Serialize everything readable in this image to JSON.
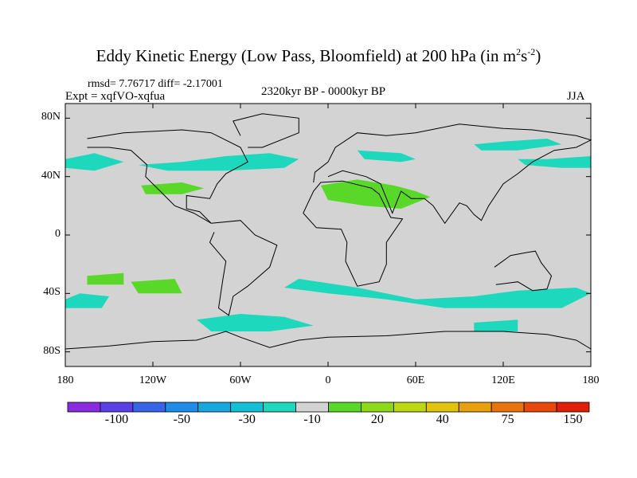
{
  "title": {
    "main": "Eddy Kinetic Energy (Low Pass, Bloomfield) at 200 hPa (in m",
    "sup1": "2",
    "s": "s",
    "sup2": "-2",
    "close": ")"
  },
  "stats": "rmsd= 7.76717 diff= -2.17001",
  "experiment": "Expt = xqfVO-xqfua",
  "period": "2320kyr BP - 0000kyr BP",
  "season": "JJA",
  "map": {
    "projection": "cylindrical-equidistant",
    "lon_range": [
      -180,
      180
    ],
    "lat_range": [
      -90,
      90
    ],
    "ocean_land_fill": "#d3d3d3",
    "x_ticks": [
      {
        "lon": -180,
        "label": "180"
      },
      {
        "lon": -120,
        "label": "120W"
      },
      {
        "lon": -60,
        "label": "60W"
      },
      {
        "lon": 0,
        "label": "0"
      },
      {
        "lon": 60,
        "label": "60E"
      },
      {
        "lon": 120,
        "label": "120E"
      },
      {
        "lon": 180,
        "label": "180"
      }
    ],
    "y_ticks": [
      {
        "lat": 80,
        "label": "80N"
      },
      {
        "lat": 40,
        "label": "40N"
      },
      {
        "lat": 0,
        "label": "0"
      },
      {
        "lat": -40,
        "label": "40S"
      },
      {
        "lat": -80,
        "label": "80S"
      }
    ]
  },
  "colorbar": {
    "colors": [
      "#8a2be2",
      "#5a3ee6",
      "#3a64e8",
      "#1e8ce8",
      "#18a8e0",
      "#15c0d6",
      "#1dd8bc",
      "#d3d3d3",
      "#5ad82a",
      "#8ed81a",
      "#bcd812",
      "#e0c40e",
      "#e8a00c",
      "#e8740c",
      "#e8480a",
      "#e01e0a"
    ],
    "labels": [
      "-100",
      "-50",
      "-30",
      "-10",
      "20",
      "40",
      "75",
      "150"
    ]
  },
  "features": {
    "regions": [
      {
        "name": "north-pacific-band-west",
        "level": -10,
        "color": "#1dd8bc",
        "pts": [
          [
            -180,
            52
          ],
          [
            -160,
            56
          ],
          [
            -140,
            50
          ],
          [
            -160,
            44
          ],
          [
            -180,
            46
          ]
        ]
      },
      {
        "name": "north-atlantic-band",
        "level": -10,
        "color": "#1dd8bc",
        "pts": [
          [
            -130,
            48
          ],
          [
            -100,
            50
          ],
          [
            -70,
            54
          ],
          [
            -40,
            56
          ],
          [
            -20,
            52
          ],
          [
            -30,
            46
          ],
          [
            -70,
            44
          ],
          [
            -110,
            44
          ]
        ]
      },
      {
        "name": "siberia-band",
        "level": -10,
        "color": "#1dd8bc",
        "pts": [
          [
            20,
            58
          ],
          [
            50,
            56
          ],
          [
            60,
            52
          ],
          [
            50,
            50
          ],
          [
            25,
            52
          ]
        ]
      },
      {
        "name": "west-asia-band",
        "level": -10,
        "color": "#1dd8bc",
        "pts": [
          [
            130,
            52
          ],
          [
            150,
            52
          ],
          [
            180,
            54
          ],
          [
            180,
            46
          ],
          [
            160,
            46
          ],
          [
            135,
            48
          ]
        ]
      },
      {
        "name": "east-siberia-band",
        "level": -10,
        "color": "#1dd8bc",
        "pts": [
          [
            100,
            62
          ],
          [
            120,
            64
          ],
          [
            150,
            66
          ],
          [
            160,
            62
          ],
          [
            130,
            58
          ],
          [
            105,
            58
          ]
        ]
      },
      {
        "name": "subtropic-us",
        "level": 20,
        "color": "#5ad82a",
        "pts": [
          [
            -128,
            34
          ],
          [
            -100,
            36
          ],
          [
            -85,
            32
          ],
          [
            -100,
            28
          ],
          [
            -125,
            28
          ]
        ]
      },
      {
        "name": "north-africa-middle-east",
        "level": 20,
        "color": "#5ad82a",
        "pts": [
          [
            -5,
            34
          ],
          [
            20,
            38
          ],
          [
            45,
            34
          ],
          [
            60,
            30
          ],
          [
            70,
            26
          ],
          [
            50,
            18
          ],
          [
            25,
            20
          ],
          [
            0,
            24
          ]
        ]
      },
      {
        "name": "southern-ocean-band",
        "level": -10,
        "color": "#1dd8bc",
        "pts": [
          [
            -20,
            -30
          ],
          [
            20,
            -36
          ],
          [
            60,
            -44
          ],
          [
            100,
            -42
          ],
          [
            130,
            -38
          ],
          [
            170,
            -36
          ],
          [
            180,
            -40
          ],
          [
            160,
            -50
          ],
          [
            120,
            -50
          ],
          [
            80,
            -50
          ],
          [
            40,
            -44
          ],
          [
            0,
            -40
          ],
          [
            -30,
            -36
          ]
        ]
      },
      {
        "name": "south-pacific-patch",
        "level": -10,
        "color": "#1dd8bc",
        "pts": [
          [
            -180,
            -44
          ],
          [
            -170,
            -40
          ],
          [
            -150,
            -42
          ],
          [
            -155,
            -50
          ],
          [
            -180,
            -50
          ]
        ]
      },
      {
        "name": "south-america-south",
        "level": -10,
        "color": "#1dd8bc",
        "pts": [
          [
            -90,
            -58
          ],
          [
            -60,
            -54
          ],
          [
            -30,
            -56
          ],
          [
            -10,
            -62
          ],
          [
            -40,
            -66
          ],
          [
            -80,
            -66
          ]
        ]
      },
      {
        "name": "south-pacific-green-1",
        "level": 20,
        "color": "#5ad82a",
        "pts": [
          [
            -165,
            -28
          ],
          [
            -140,
            -26
          ],
          [
            -140,
            -34
          ],
          [
            -165,
            -34
          ]
        ]
      },
      {
        "name": "south-pacific-green-2",
        "level": 20,
        "color": "#5ad82a",
        "pts": [
          [
            -135,
            -32
          ],
          [
            -105,
            -30
          ],
          [
            -100,
            -40
          ],
          [
            -130,
            -40
          ]
        ]
      },
      {
        "name": "indian-ocean-patch",
        "level": -10,
        "color": "#1dd8bc",
        "pts": [
          [
            100,
            -60
          ],
          [
            130,
            -58
          ],
          [
            130,
            -66
          ],
          [
            100,
            -66
          ]
        ]
      }
    ],
    "coast_outlines": [
      {
        "name": "north-america",
        "pts": [
          [
            -165,
            66
          ],
          [
            -140,
            70
          ],
          [
            -100,
            72
          ],
          [
            -80,
            70
          ],
          [
            -60,
            60
          ],
          [
            -55,
            50
          ],
          [
            -70,
            42
          ],
          [
            -76,
            35
          ],
          [
            -81,
            25
          ],
          [
            -97,
            27
          ],
          [
            -97,
            18
          ],
          [
            -88,
            16
          ],
          [
            -80,
            8
          ],
          [
            -92,
            15
          ],
          [
            -105,
            20
          ],
          [
            -115,
            30
          ],
          [
            -125,
            40
          ],
          [
            -124,
            48
          ],
          [
            -135,
            58
          ],
          [
            -150,
            60
          ],
          [
            -165,
            60
          ]
        ]
      },
      {
        "name": "south-america",
        "pts": [
          [
            -80,
            8
          ],
          [
            -60,
            10
          ],
          [
            -50,
            0
          ],
          [
            -35,
            -7
          ],
          [
            -40,
            -22
          ],
          [
            -55,
            -35
          ],
          [
            -65,
            -42
          ],
          [
            -68,
            -55
          ],
          [
            -75,
            -50
          ],
          [
            -72,
            -30
          ],
          [
            -70,
            -18
          ],
          [
            -81,
            -5
          ],
          [
            -78,
            2
          ]
        ]
      },
      {
        "name": "africa",
        "pts": [
          [
            -17,
            15
          ],
          [
            -10,
            30
          ],
          [
            -5,
            36
          ],
          [
            10,
            37
          ],
          [
            30,
            32
          ],
          [
            35,
            28
          ],
          [
            43,
            12
          ],
          [
            51,
            11
          ],
          [
            40,
            -5
          ],
          [
            40,
            -20
          ],
          [
            35,
            -32
          ],
          [
            20,
            -35
          ],
          [
            12,
            -18
          ],
          [
            13,
            -5
          ],
          [
            9,
            4
          ],
          [
            -8,
            5
          ],
          [
            -17,
            15
          ]
        ]
      },
      {
        "name": "eurasia",
        "pts": [
          [
            -10,
            36
          ],
          [
            -9,
            43
          ],
          [
            0,
            50
          ],
          [
            5,
            60
          ],
          [
            20,
            70
          ],
          [
            40,
            68
          ],
          [
            60,
            70
          ],
          [
            90,
            76
          ],
          [
            120,
            73
          ],
          [
            140,
            72
          ],
          [
            170,
            68
          ],
          [
            180,
            65
          ],
          [
            170,
            60
          ],
          [
            155,
            58
          ],
          [
            140,
            50
          ],
          [
            130,
            42
          ],
          [
            120,
            35
          ],
          [
            110,
            20
          ],
          [
            105,
            10
          ],
          [
            100,
            14
          ],
          [
            95,
            20
          ],
          [
            90,
            22
          ],
          [
            80,
            8
          ],
          [
            72,
            20
          ],
          [
            66,
            25
          ],
          [
            57,
            25
          ],
          [
            50,
            30
          ],
          [
            44,
            15
          ],
          [
            36,
            35
          ],
          [
            26,
            40
          ],
          [
            10,
            44
          ],
          [
            0,
            40
          ]
        ]
      },
      {
        "name": "australia",
        "pts": [
          [
            114,
            -22
          ],
          [
            125,
            -14
          ],
          [
            136,
            -12
          ],
          [
            142,
            -11
          ],
          [
            146,
            -19
          ],
          [
            153,
            -28
          ],
          [
            150,
            -37
          ],
          [
            140,
            -38
          ],
          [
            130,
            -32
          ],
          [
            115,
            -34
          ]
        ]
      },
      {
        "name": "greenland",
        "pts": [
          [
            -55,
            60
          ],
          [
            -45,
            60
          ],
          [
            -20,
            70
          ],
          [
            -20,
            80
          ],
          [
            -45,
            83
          ],
          [
            -65,
            78
          ],
          [
            -60,
            68
          ]
        ]
      },
      {
        "name": "antarctica",
        "pts": [
          [
            -180,
            -78
          ],
          [
            -150,
            -76
          ],
          [
            -120,
            -73
          ],
          [
            -90,
            -72
          ],
          [
            -70,
            -66
          ],
          [
            -60,
            -70
          ],
          [
            -40,
            -77
          ],
          [
            -20,
            -72
          ],
          [
            0,
            -70
          ],
          [
            40,
            -69
          ],
          [
            80,
            -66
          ],
          [
            120,
            -66
          ],
          [
            150,
            -68
          ],
          [
            170,
            -72
          ],
          [
            180,
            -78
          ]
        ]
      }
    ]
  }
}
